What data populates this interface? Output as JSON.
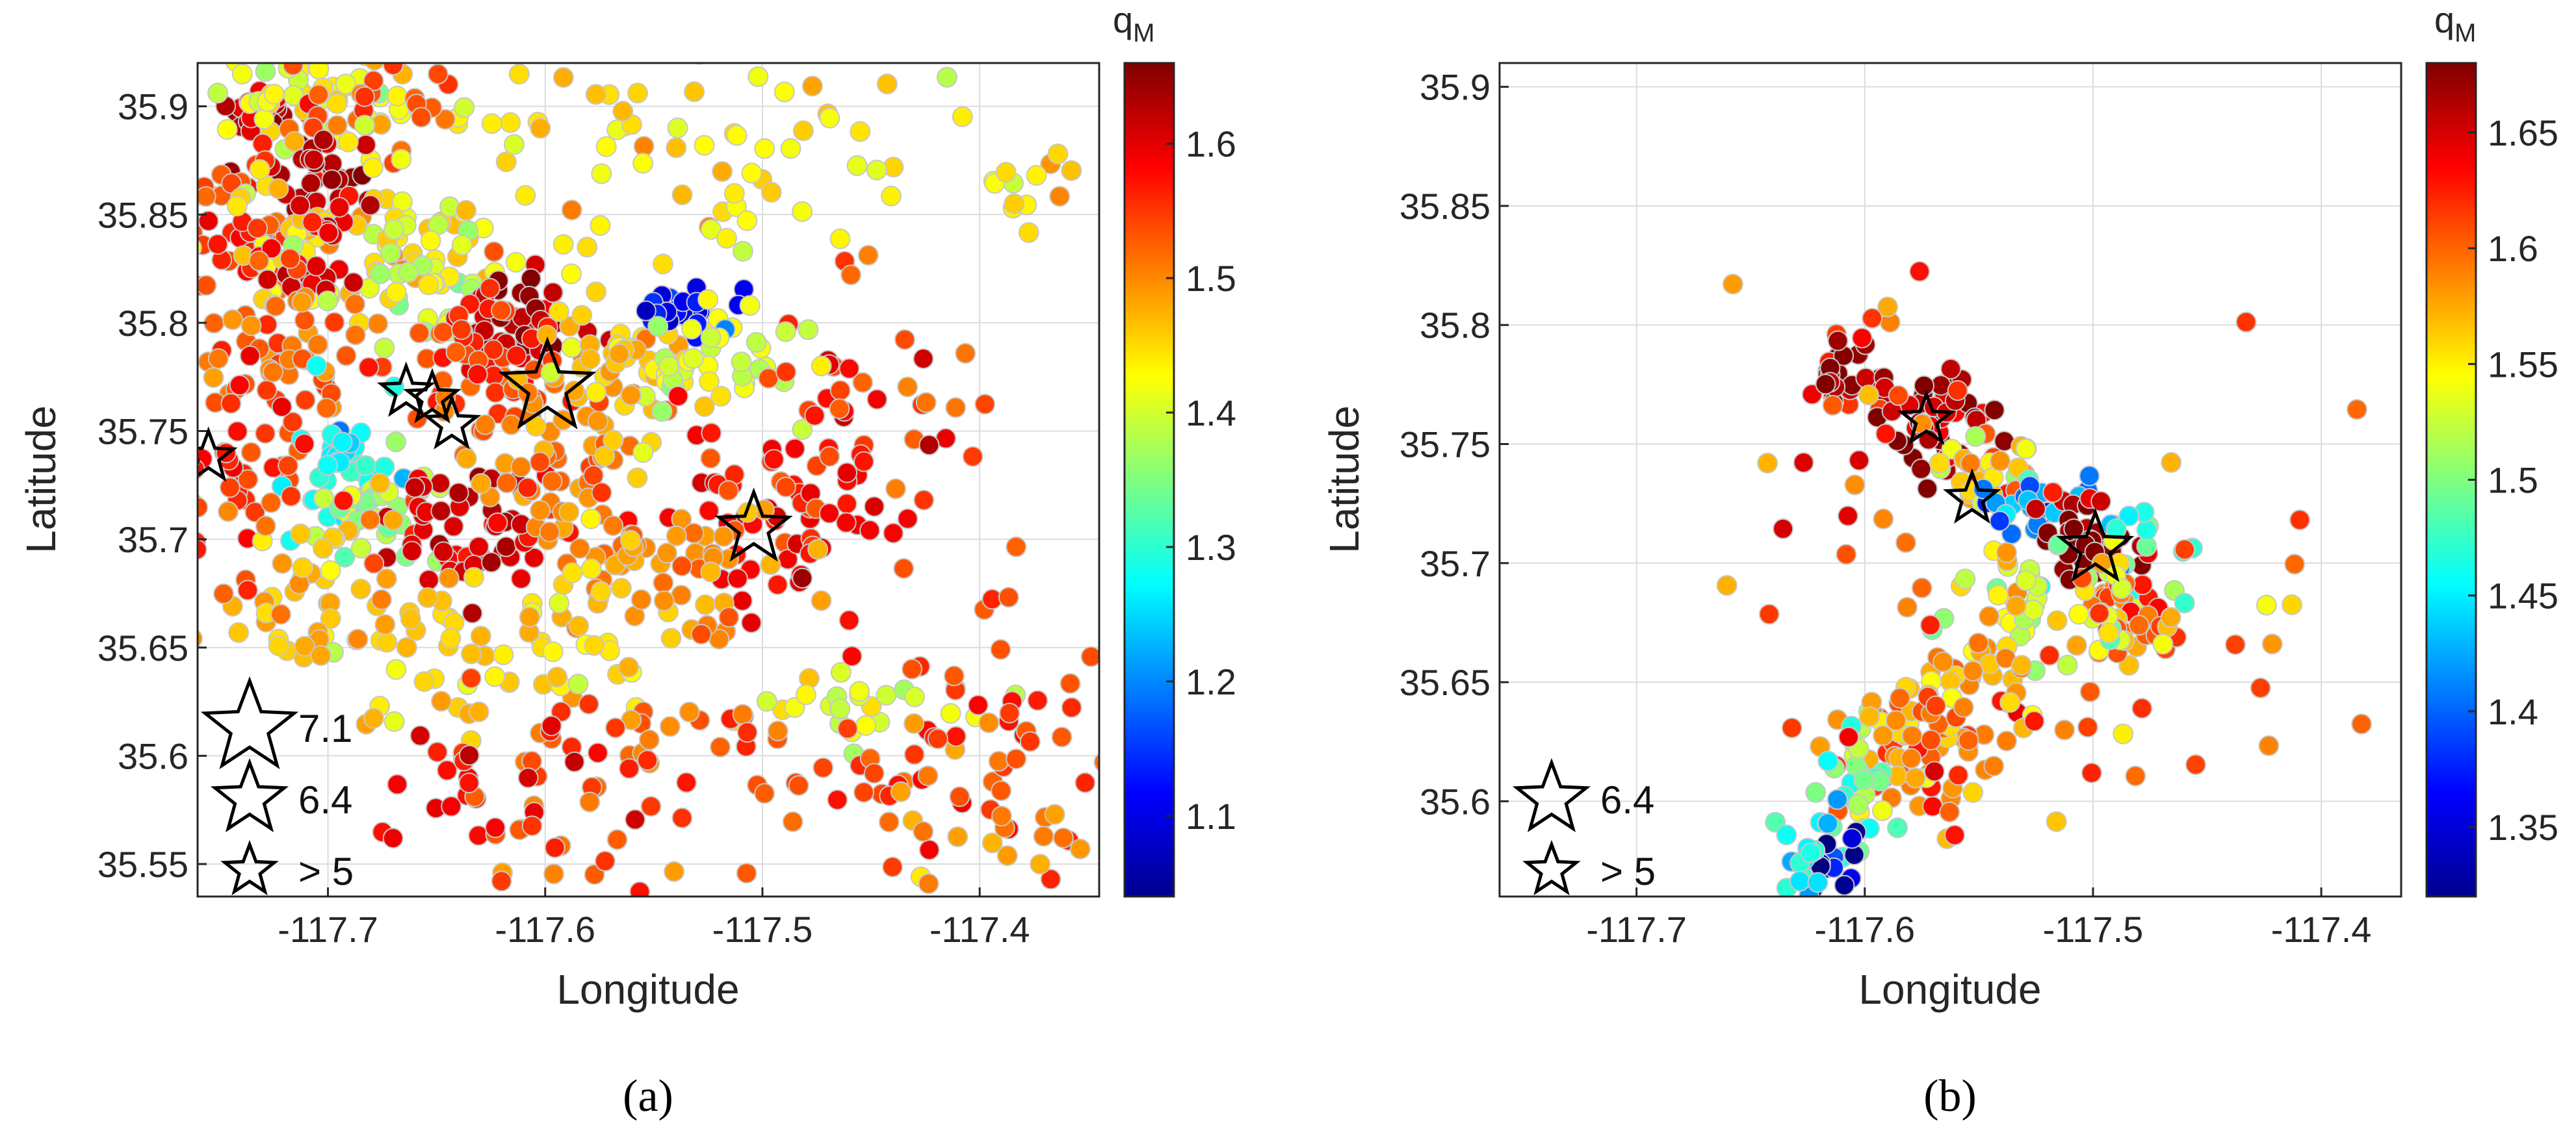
{
  "chart_data": [
    {
      "type": "scatter",
      "panel": "(a)",
      "xlabel": "Longitude",
      "ylabel": "Latitude",
      "xlim": [
        -117.76,
        -117.345
      ],
      "ylim": [
        35.535,
        35.92
      ],
      "xticks": [
        -117.7,
        -117.6,
        -117.5,
        -117.4
      ],
      "xtick_labels": [
        "-117.7",
        "-117.6",
        "-117.5",
        "-117.4"
      ],
      "yticks": [
        35.55,
        35.6,
        35.65,
        35.7,
        35.75,
        35.8,
        35.85,
        35.9
      ],
      "ytick_labels": [
        "35.55",
        "35.6",
        "35.65",
        "35.7",
        "35.75",
        "35.8",
        "35.85",
        "35.9"
      ],
      "grid": true,
      "colorbar": {
        "title": "q",
        "title_subscript": "M",
        "range": [
          1.04,
          1.66
        ],
        "ticks": [
          1.1,
          1.2,
          1.3,
          1.4,
          1.5,
          1.6
        ],
        "tick_labels": [
          "1.1",
          "1.2",
          "1.3",
          "1.4",
          "1.5",
          "1.6"
        ],
        "colormap": "jet"
      },
      "clusters": [
        {
          "lon": -117.73,
          "lat": 35.9,
          "spread": [
            0.01,
            0.006
          ],
          "n": 18,
          "q": 1.62
        },
        {
          "lon": -117.7,
          "lat": 35.905,
          "spread": [
            0.03,
            0.012
          ],
          "n": 60,
          "q": 1.42
        },
        {
          "lon": -117.68,
          "lat": 35.9,
          "spread": [
            0.02,
            0.012
          ],
          "n": 30,
          "q": 1.52
        },
        {
          "lon": -117.71,
          "lat": 35.87,
          "spread": [
            0.015,
            0.01
          ],
          "n": 30,
          "q": 1.62
        },
        {
          "lon": -117.74,
          "lat": 35.84,
          "spread": [
            0.015,
            0.02
          ],
          "n": 40,
          "q": 1.55
        },
        {
          "lon": -117.69,
          "lat": 35.84,
          "spread": [
            0.03,
            0.02
          ],
          "n": 70,
          "q": 1.45
        },
        {
          "lon": -117.71,
          "lat": 35.835,
          "spread": [
            0.012,
            0.01
          ],
          "n": 25,
          "q": 1.6
        },
        {
          "lon": -117.65,
          "lat": 35.82,
          "spread": [
            0.02,
            0.02
          ],
          "n": 40,
          "q": 1.4
        },
        {
          "lon": -117.61,
          "lat": 35.8,
          "spread": [
            0.015,
            0.012
          ],
          "n": 40,
          "q": 1.63
        },
        {
          "lon": -117.63,
          "lat": 35.78,
          "spread": [
            0.02,
            0.02
          ],
          "n": 50,
          "q": 1.55
        },
        {
          "lon": -117.72,
          "lat": 35.78,
          "spread": [
            0.02,
            0.02
          ],
          "n": 60,
          "q": 1.52
        },
        {
          "lon": -117.69,
          "lat": 35.73,
          "spread": [
            0.012,
            0.015
          ],
          "n": 35,
          "q": 1.28
        },
        {
          "lon": -117.675,
          "lat": 35.715,
          "spread": [
            0.015,
            0.012
          ],
          "n": 30,
          "q": 1.38
        },
        {
          "lon": -117.74,
          "lat": 35.73,
          "spread": [
            0.015,
            0.02
          ],
          "n": 40,
          "q": 1.55
        },
        {
          "lon": -117.63,
          "lat": 35.7,
          "spread": [
            0.02,
            0.015
          ],
          "n": 60,
          "q": 1.6
        },
        {
          "lon": -117.6,
          "lat": 35.74,
          "spread": [
            0.025,
            0.02
          ],
          "n": 60,
          "q": 1.5
        },
        {
          "lon": -117.56,
          "lat": 35.78,
          "spread": [
            0.02,
            0.02
          ],
          "n": 50,
          "q": 1.45
        },
        {
          "lon": -117.535,
          "lat": 35.805,
          "spread": [
            0.012,
            0.006
          ],
          "n": 25,
          "q": 1.12
        },
        {
          "lon": -117.52,
          "lat": 35.78,
          "spread": [
            0.02,
            0.015
          ],
          "n": 30,
          "q": 1.4
        },
        {
          "lon": -117.49,
          "lat": 35.72,
          "spread": [
            0.02,
            0.025
          ],
          "n": 60,
          "q": 1.58
        },
        {
          "lon": -117.47,
          "lat": 35.75,
          "spread": [
            0.03,
            0.03
          ],
          "n": 30,
          "q": 1.57
        },
        {
          "lon": -117.55,
          "lat": 35.69,
          "spread": [
            0.03,
            0.02
          ],
          "n": 60,
          "q": 1.5
        },
        {
          "lon": -117.63,
          "lat": 35.65,
          "spread": [
            0.05,
            0.02
          ],
          "n": 70,
          "q": 1.45
        },
        {
          "lon": -117.7,
          "lat": 35.68,
          "spread": [
            0.03,
            0.02
          ],
          "n": 40,
          "q": 1.48
        },
        {
          "lon": -117.46,
          "lat": 35.62,
          "spread": [
            0.02,
            0.01
          ],
          "n": 25,
          "q": 1.4
        },
        {
          "lon": -117.43,
          "lat": 35.6,
          "spread": [
            0.04,
            0.025
          ],
          "n": 50,
          "q": 1.55
        },
        {
          "lon": -117.56,
          "lat": 35.6,
          "spread": [
            0.04,
            0.03
          ],
          "n": 50,
          "q": 1.53
        },
        {
          "lon": -117.62,
          "lat": 35.58,
          "spread": [
            0.03,
            0.02
          ],
          "n": 30,
          "q": 1.58
        },
        {
          "lon": -117.38,
          "lat": 35.56,
          "spread": [
            0.03,
            0.02
          ],
          "n": 25,
          "q": 1.5
        },
        {
          "lon": -117.55,
          "lat": 35.87,
          "spread": [
            0.05,
            0.03
          ],
          "n": 50,
          "q": 1.45
        },
        {
          "lon": -117.47,
          "lat": 35.86,
          "spread": [
            0.05,
            0.04
          ],
          "n": 25,
          "q": 1.42
        },
        {
          "lon": -117.37,
          "lat": 35.87,
          "spread": [
            0.02,
            0.01
          ],
          "n": 10,
          "q": 1.45
        },
        {
          "lon": -117.4,
          "lat": 35.68,
          "spread": [
            0.04,
            0.06
          ],
          "n": 25,
          "q": 1.53
        }
      ],
      "stars": [
        {
          "lon": -117.599,
          "lat": 35.77,
          "mag": "7.1"
        },
        {
          "lon": -117.504,
          "lat": 35.705,
          "mag": "6.4"
        },
        {
          "lon": -117.664,
          "lat": 35.768,
          "mag": "> 5"
        },
        {
          "lon": -117.652,
          "lat": 35.765,
          "mag": "> 5"
        },
        {
          "lon": -117.643,
          "lat": 35.753,
          "mag": "> 5"
        },
        {
          "lon": -117.755,
          "lat": 35.738,
          "mag": "> 5"
        }
      ],
      "legend": {
        "position": "bottom-left",
        "entries": [
          "7.1",
          "6.4",
          "> 5"
        ]
      }
    },
    {
      "type": "scatter",
      "panel": "(b)",
      "xlabel": "Longitude",
      "ylabel": "Latitude",
      "xlim": [
        -117.76,
        -117.365
      ],
      "ylim": [
        35.56,
        35.91
      ],
      "xticks": [
        -117.7,
        -117.6,
        -117.5,
        -117.4
      ],
      "xtick_labels": [
        "-117.7",
        "-117.6",
        "-117.5",
        "-117.4"
      ],
      "yticks": [
        35.6,
        35.65,
        35.7,
        35.75,
        35.8,
        35.85,
        35.9
      ],
      "ytick_labels": [
        "35.6",
        "35.65",
        "35.7",
        "35.75",
        "35.8",
        "35.85",
        "35.9"
      ],
      "grid": true,
      "colorbar": {
        "title": "q",
        "title_subscript": "M",
        "range": [
          1.32,
          1.68
        ],
        "ticks": [
          1.35,
          1.4,
          1.45,
          1.5,
          1.55,
          1.6,
          1.65
        ],
        "tick_labels": [
          "1.35",
          "1.4",
          "1.45",
          "1.5",
          "1.55",
          "1.6",
          "1.65"
        ],
        "colormap": "jet"
      },
      "clusters": [
        {
          "lon": -117.61,
          "lat": 35.78,
          "spread": [
            0.008,
            0.008
          ],
          "n": 25,
          "q": 1.66
        },
        {
          "lon": -117.57,
          "lat": 35.76,
          "spread": [
            0.015,
            0.012
          ],
          "n": 50,
          "q": 1.66
        },
        {
          "lon": -117.545,
          "lat": 35.735,
          "spread": [
            0.012,
            0.008
          ],
          "n": 30,
          "q": 1.56
        },
        {
          "lon": -117.525,
          "lat": 35.725,
          "spread": [
            0.01,
            0.006
          ],
          "n": 25,
          "q": 1.42
        },
        {
          "lon": -117.5,
          "lat": 35.71,
          "spread": [
            0.012,
            0.008
          ],
          "n": 40,
          "q": 1.68
        },
        {
          "lon": -117.48,
          "lat": 35.705,
          "spread": [
            0.01,
            0.01
          ],
          "n": 20,
          "q": 1.48
        },
        {
          "lon": -117.48,
          "lat": 35.675,
          "spread": [
            0.012,
            0.01
          ],
          "n": 35,
          "q": 1.6
        },
        {
          "lon": -117.52,
          "lat": 35.68,
          "spread": [
            0.02,
            0.012
          ],
          "n": 40,
          "q": 1.52
        },
        {
          "lon": -117.55,
          "lat": 35.65,
          "spread": [
            0.02,
            0.02
          ],
          "n": 60,
          "q": 1.58
        },
        {
          "lon": -117.58,
          "lat": 35.62,
          "spread": [
            0.015,
            0.015
          ],
          "n": 50,
          "q": 1.6
        },
        {
          "lon": -117.6,
          "lat": 35.61,
          "spread": [
            0.012,
            0.015
          ],
          "n": 30,
          "q": 1.5
        },
        {
          "lon": -117.615,
          "lat": 35.575,
          "spread": [
            0.008,
            0.006
          ],
          "n": 15,
          "q": 1.35
        },
        {
          "lon": -117.625,
          "lat": 35.58,
          "spread": [
            0.01,
            0.01
          ],
          "n": 15,
          "q": 1.46
        },
        {
          "lon": -117.6,
          "lat": 35.7,
          "spread": [
            0.03,
            0.06
          ],
          "n": 25,
          "q": 1.6
        },
        {
          "lon": -117.5,
          "lat": 35.65,
          "spread": [
            0.05,
            0.04
          ],
          "n": 20,
          "q": 1.6
        },
        {
          "lon": -117.45,
          "lat": 35.68,
          "spread": [
            0.04,
            0.05
          ],
          "n": 12,
          "q": 1.61
        }
      ],
      "stars": [
        {
          "lon": -117.499,
          "lat": 35.706,
          "mag": "6.4"
        },
        {
          "lon": -117.573,
          "lat": 35.76,
          "mag": "> 5"
        },
        {
          "lon": -117.553,
          "lat": 35.727,
          "mag": "> 5"
        }
      ],
      "legend": {
        "position": "bottom-left",
        "entries": [
          "6.4",
          "> 5"
        ]
      }
    }
  ]
}
